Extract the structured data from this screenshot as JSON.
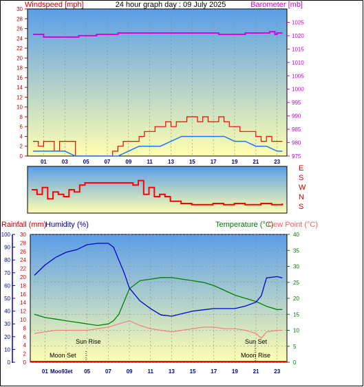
{
  "window": {
    "border_color": "#000000"
  },
  "labels": {
    "windspeed": "Windspeed [mph]",
    "title": "24 hour graph day : 09 July 2025",
    "barometer": "Barometer [mb]",
    "rainfall": "Rainfall (mm)",
    "humidity": "Humidity (%)",
    "temperature": "Temperature (°C)",
    "dewpoint": "Dew Point (°C)",
    "sunrise": "Sun Rise",
    "sunset": "Sun Set",
    "moonset": "Moon Set",
    "moonrise": "Moon Rise",
    "moonlabel": "Moo93et"
  },
  "colors": {
    "windspeed": "#ff0000",
    "windavg": "#1a75ff",
    "barometer": "#dd00dd",
    "humidity": "#0000cc",
    "temperature": "#008000",
    "dewpoint": "#f08080",
    "rain": "#ff0000",
    "axis_blue": "#000080",
    "bg_top": "#5a9ee8",
    "bg_bottom": "#ffffb0"
  },
  "chart_data": [
    {
      "type": "line",
      "title": "24 hour graph day : 09 July 2025",
      "ylabel": "Windspeed [mph]",
      "y2label": "Barometer [mb]",
      "ylim": [
        0,
        30
      ],
      "y2lim": [
        975,
        1030
      ],
      "yticks": [
        "0",
        "2",
        "4",
        "6",
        "8",
        "10",
        "12",
        "14",
        "16",
        "18",
        "20",
        "22",
        "24",
        "26",
        "28",
        "30"
      ],
      "y2ticks": [
        "975",
        "980",
        "985",
        "990",
        "995",
        "1000",
        "1005",
        "1010",
        "1015",
        "1020",
        "1025"
      ],
      "xticks": [
        "01",
        "03",
        "05",
        "07",
        "09",
        "11",
        "13",
        "15",
        "17",
        "19",
        "21",
        "23"
      ],
      "series": [
        {
          "name": "Windspeed",
          "x": [
            0,
            0.5,
            1,
            1.5,
            2,
            2.5,
            3,
            4,
            5,
            6,
            7,
            7.5,
            8,
            8.5,
            9,
            9.5,
            10,
            10.5,
            11,
            11.5,
            12,
            12.5,
            13,
            13.5,
            14,
            14.5,
            15,
            15.5,
            16,
            16.5,
            17,
            17.5,
            18,
            18.5,
            19,
            19.5,
            20,
            20.5,
            21,
            21.5,
            22,
            22.5,
            23,
            23.5
          ],
          "values": [
            3,
            2,
            3,
            3,
            1,
            3,
            3,
            0,
            0,
            0,
            0,
            1,
            2,
            3,
            3,
            3,
            4,
            5,
            5,
            6,
            6,
            7,
            6,
            7,
            7,
            8,
            8,
            7,
            8,
            7,
            7,
            8,
            7,
            6,
            6,
            5,
            5,
            5,
            4,
            3,
            4,
            3,
            3,
            3
          ]
        },
        {
          "name": "Wind average",
          "x": [
            0,
            1,
            2,
            3,
            4,
            5,
            6,
            7,
            8,
            9,
            10,
            11,
            12,
            13,
            14,
            15,
            16,
            17,
            18,
            19,
            20,
            21,
            22,
            23,
            23.5
          ],
          "values": [
            1,
            1,
            1,
            1,
            0,
            0,
            0,
            0,
            0,
            1,
            2,
            2,
            2,
            3,
            4,
            4,
            4,
            4,
            4,
            3,
            3,
            2,
            2,
            1,
            1
          ]
        },
        {
          "name": "Barometer",
          "x": [
            0,
            0.3,
            1,
            2,
            3,
            4,
            4.3,
            5,
            6,
            7,
            8,
            9,
            10,
            11,
            12,
            13,
            14,
            15,
            16,
            17,
            17.5,
            18,
            19,
            20,
            21,
            22,
            22.3,
            22.8,
            23,
            23.5
          ],
          "values": [
            1020.5,
            1020.5,
            1019.5,
            1019.5,
            1019.5,
            1019.5,
            1020,
            1020,
            1020.5,
            1020.5,
            1021,
            1021,
            1021,
            1021,
            1021,
            1021,
            1021,
            1021,
            1021,
            1021,
            1020.5,
            1020.5,
            1020.5,
            1021,
            1021,
            1021,
            1021.5,
            1020.5,
            1021,
            1021
          ]
        }
      ]
    },
    {
      "type": "scatter",
      "ylabel": "Wind direction",
      "yticks": [
        "E",
        "S",
        "W",
        "N",
        "S"
      ],
      "ylim_deg": [
        90,
        180
      ],
      "series": [
        {
          "name": "Direction",
          "x": [
            0,
            0.5,
            1,
            1.5,
            2,
            2.5,
            3,
            3.5,
            4,
            4.5,
            5,
            6,
            7,
            8,
            9,
            9.5,
            10,
            10.5,
            11,
            11.5,
            12,
            12.5,
            13,
            14,
            15,
            16,
            17,
            18,
            19,
            20,
            21,
            21.5,
            22,
            22.5,
            23,
            23.5
          ],
          "values": [
            180,
            200,
            170,
            220,
            190,
            200,
            210,
            180,
            190,
            160,
            150,
            150,
            150,
            150,
            150,
            160,
            140,
            200,
            170,
            210,
            200,
            210,
            230,
            240,
            245,
            245,
            240,
            245,
            240,
            245,
            245,
            240,
            240,
            245,
            245,
            240
          ]
        }
      ]
    },
    {
      "type": "line",
      "ylabel": "Rainfall (mm) / Humidity (%)",
      "y2label": "Temperature (°C) / Dew Point (°C)",
      "humidity_ylim": [
        0,
        100
      ],
      "rain_ylim": [
        0,
        30
      ],
      "temp_ylim": [
        0,
        40
      ],
      "humidity_ticks": [
        "0",
        "10",
        "20",
        "30",
        "40",
        "50",
        "60",
        "70",
        "80",
        "90",
        "100"
      ],
      "rain_ticks": [
        "0",
        "2",
        "4",
        "6",
        "8",
        "10",
        "12",
        "14",
        "16",
        "18",
        "20",
        "22",
        "24",
        "26",
        "28",
        "30"
      ],
      "temp_ticks": [
        "0",
        "5",
        "10",
        "15",
        "20",
        "25",
        "30",
        "35",
        "40"
      ],
      "xticks": [
        "01",
        "03",
        "05",
        "07",
        "09",
        "11",
        "13",
        "15",
        "17",
        "19",
        "21",
        "23"
      ],
      "series": [
        {
          "name": "Humidity",
          "x": [
            0,
            1,
            2,
            3,
            4,
            5,
            6,
            7,
            7.5,
            8,
            8.5,
            9,
            10,
            11,
            12,
            13,
            14,
            15,
            16,
            17,
            18,
            19,
            20,
            21,
            21.5,
            22,
            23,
            23.5
          ],
          "values": [
            68,
            76,
            82,
            86,
            88,
            92,
            93,
            93,
            90,
            80,
            70,
            58,
            48,
            42,
            37,
            36,
            38,
            40,
            41,
            42,
            42,
            42,
            44,
            47,
            52,
            66,
            67,
            66
          ]
        },
        {
          "name": "Temperature",
          "x": [
            0,
            1,
            2,
            3,
            4,
            5,
            6,
            7,
            7.5,
            8,
            8.5,
            9,
            10,
            11,
            12,
            13,
            14,
            15,
            16,
            17,
            18,
            19,
            20,
            21,
            22,
            23,
            23.5
          ],
          "values": [
            15,
            14,
            13.5,
            13,
            12.5,
            12,
            11.5,
            12,
            13,
            15,
            19,
            23,
            25.5,
            26,
            26.5,
            26.5,
            26,
            25.5,
            25,
            24,
            22.5,
            21,
            20,
            19,
            17.5,
            16.5,
            16.5
          ]
        },
        {
          "name": "Dew Point",
          "x": [
            0,
            1,
            2,
            3,
            4,
            5,
            6,
            7,
            8,
            9,
            10,
            11,
            12,
            13,
            14,
            15,
            16,
            17,
            18,
            19,
            20,
            21,
            21.5,
            22,
            23,
            23.5
          ],
          "values": [
            9,
            9.5,
            10,
            10,
            10,
            10,
            10.5,
            11,
            12,
            13,
            11.5,
            10.5,
            10,
            9.5,
            10,
            10.5,
            11,
            11,
            10.5,
            10.5,
            10,
            9,
            7.5,
            9.5,
            10,
            10
          ]
        },
        {
          "name": "Rainfall",
          "x": [
            0,
            23.5
          ],
          "values": [
            0,
            0
          ]
        }
      ],
      "markers": [
        {
          "label": "Sun Rise",
          "hour": 4.9
        },
        {
          "label": "Sun Set",
          "hour": 21.3
        }
      ]
    }
  ]
}
